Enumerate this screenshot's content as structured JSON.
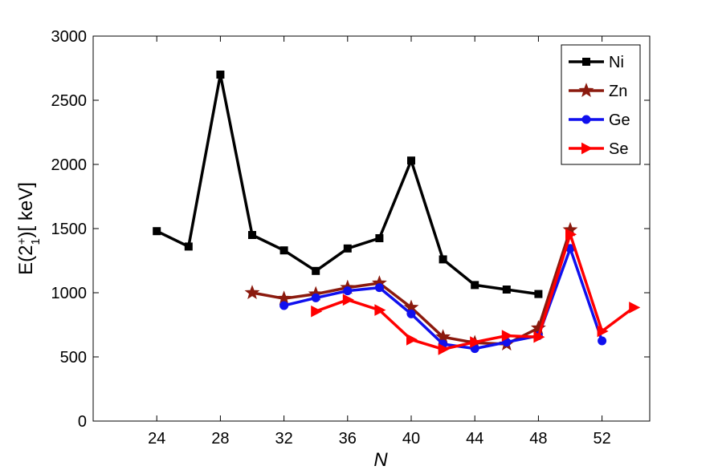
{
  "chart_data": {
    "type": "line",
    "xlabel": "N",
    "ylabel": "E(2₁⁺)[ keV]",
    "xlim": [
      20,
      55
    ],
    "ylim": [
      0,
      3000
    ],
    "xticks": [
      24,
      28,
      32,
      36,
      40,
      44,
      48,
      52
    ],
    "yticks": [
      0,
      500,
      1000,
      1500,
      2000,
      2500,
      3000
    ],
    "grid": false,
    "legend_position": "top-right",
    "series": [
      {
        "name": "Ni",
        "color": "#000000",
        "marker": "square",
        "x": [
          24,
          26,
          28,
          30,
          32,
          34,
          36,
          38,
          40,
          42,
          44,
          46,
          48
        ],
        "y": [
          1480,
          1360,
          2700,
          1450,
          1330,
          1170,
          1345,
          1425,
          2030,
          1260,
          1060,
          1025,
          990
        ]
      },
      {
        "name": "Zn",
        "color": "#8b1a0e",
        "marker": "star",
        "x": [
          30,
          32,
          34,
          36,
          38,
          40,
          42,
          44,
          46,
          48,
          50
        ],
        "y": [
          1000,
          955,
          990,
          1040,
          1075,
          885,
          655,
          610,
          600,
          725,
          1490
        ]
      },
      {
        "name": "Ge",
        "color": "#1010ee",
        "marker": "circle",
        "x": [
          32,
          34,
          36,
          38,
          40,
          42,
          44,
          46,
          48,
          50,
          52
        ],
        "y": [
          900,
          960,
          1015,
          1040,
          835,
          600,
          565,
          615,
          665,
          1345,
          625
        ]
      },
      {
        "name": "Se",
        "color": "#ff0000",
        "marker": "triangle-right",
        "x": [
          34,
          36,
          38,
          40,
          42,
          44,
          46,
          48,
          50,
          52,
          54
        ],
        "y": [
          855,
          945,
          865,
          635,
          560,
          615,
          665,
          655,
          1455,
          700,
          885
        ]
      }
    ]
  }
}
